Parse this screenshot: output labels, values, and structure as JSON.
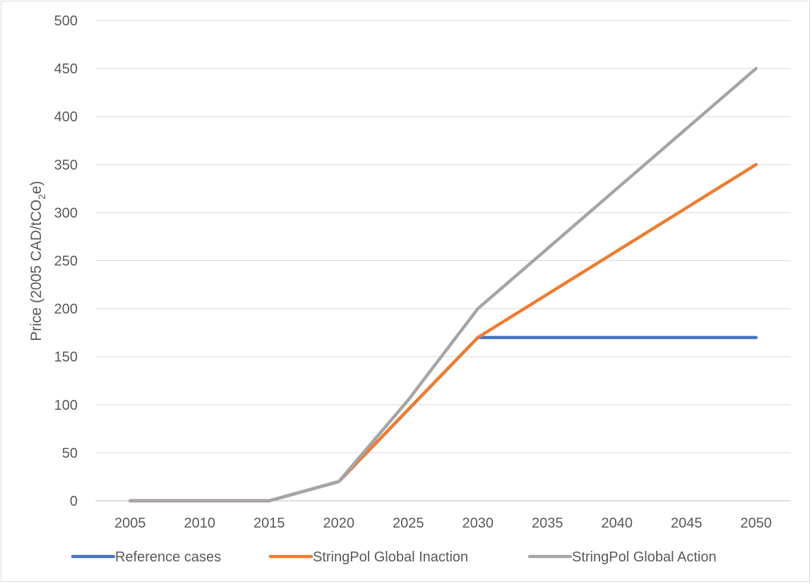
{
  "chart_data": {
    "type": "line",
    "x": [
      "2005",
      "2010",
      "2015",
      "2020",
      "2025",
      "2030",
      "2035",
      "2040",
      "2045",
      "2050"
    ],
    "yticks": [
      "0",
      "50",
      "100",
      "150",
      "200",
      "250",
      "300",
      "350",
      "400",
      "450",
      "500"
    ],
    "ylim": [
      0,
      500
    ],
    "ylabel_parts": [
      "Price (2005 CAD/tCO",
      "2",
      "e)"
    ],
    "xlabel": "",
    "grid": true,
    "legend_position": "bottom",
    "series": [
      {
        "name": "Reference cases",
        "color": "#4472c4",
        "values": [
          0,
          0,
          0,
          20,
          95,
          170,
          170,
          170,
          170,
          170
        ]
      },
      {
        "name": "StringPol Global Inaction",
        "color": "#ed7d31",
        "values": [
          0,
          0,
          0,
          20,
          95,
          170,
          215,
          260,
          305,
          350
        ]
      },
      {
        "name": "StringPol Global Action",
        "color": "#a5a5a5",
        "values": [
          0,
          0,
          0,
          20,
          105,
          200,
          262.5,
          325,
          387.5,
          450
        ]
      }
    ]
  }
}
